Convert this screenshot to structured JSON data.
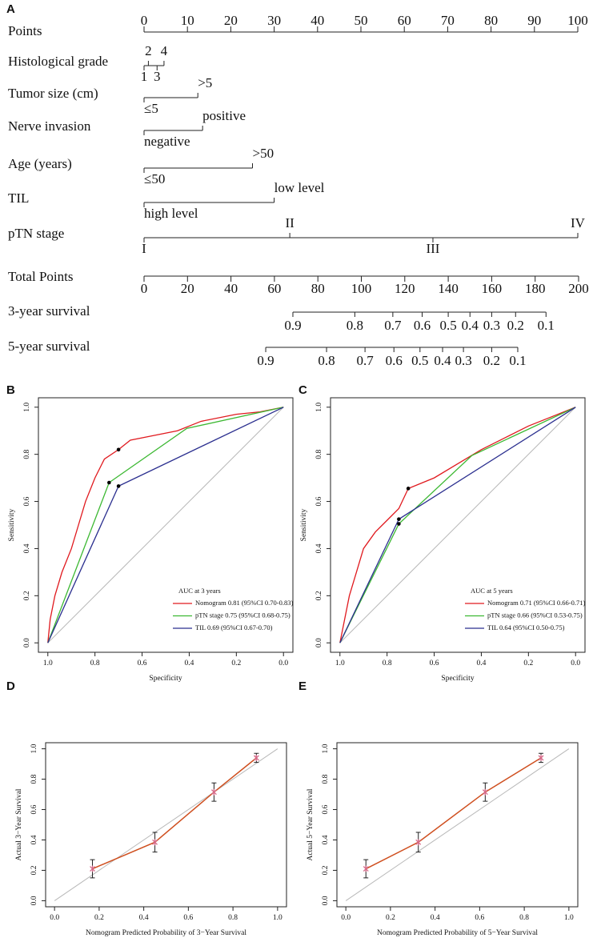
{
  "chart_data": [
    {
      "type": "nomogram",
      "panel": "A",
      "points_label": "Points",
      "xlim": [
        0,
        100
      ],
      "xticks": [
        0,
        10,
        20,
        30,
        40,
        50,
        60,
        70,
        80,
        90,
        100
      ],
      "rows": [
        {
          "label": "Histological grade",
          "levels": [
            "1",
            "2",
            "3",
            "4"
          ],
          "points": [
            0,
            1,
            3,
            4.6
          ]
        },
        {
          "label": "Tumor size (cm)",
          "levels": [
            "≤5",
            ">5"
          ],
          "points": [
            0,
            12.4
          ]
        },
        {
          "label": "Nerve invasion",
          "levels": [
            "negative",
            "positive"
          ],
          "points": [
            0,
            13.5
          ]
        },
        {
          "label": "Age (years)",
          "levels": [
            "≤50",
            ">50"
          ],
          "points": [
            0,
            25
          ]
        },
        {
          "label": "TIL",
          "levels": [
            "high level",
            "low level"
          ],
          "points": [
            0,
            30
          ]
        },
        {
          "label": "pTN stage",
          "levels": [
            "I",
            "II",
            "III",
            "IV"
          ],
          "points": [
            0,
            33.6,
            66.6,
            100
          ]
        }
      ],
      "total_label": "Total Points",
      "total_lim": [
        0,
        200
      ],
      "total_ticks": [
        0,
        20,
        40,
        60,
        80,
        100,
        120,
        140,
        160,
        180,
        200
      ],
      "survival": [
        {
          "label": "3-year survival",
          "probabilities": [
            0.9,
            0.8,
            0.7,
            0.6,
            0.5,
            0.4,
            0.3,
            0.2,
            0.1
          ],
          "points": [
            68.5,
            97,
            114.5,
            128,
            140,
            150,
            160,
            171,
            185
          ]
        },
        {
          "label": "5-year survival",
          "probabilities": [
            0.9,
            0.8,
            0.7,
            0.6,
            0.5,
            0.4,
            0.3,
            0.2,
            0.1
          ],
          "points": [
            56,
            84,
            101.7,
            115,
            127,
            137.4,
            147,
            160,
            172
          ]
        }
      ]
    },
    {
      "type": "line",
      "panel": "B",
      "xlabel": "Specificity",
      "ylabel": "Sensitivity",
      "xlim": [
        1.04,
        -0.04
      ],
      "ylim": [
        -0.04,
        1.04
      ],
      "xticks": [
        {
          "value": 1,
          "label": "1.0"
        },
        0.8,
        0.6,
        0.4,
        0.2,
        {
          "value": 0,
          "label": "0.0"
        }
      ],
      "yticks": [
        {
          "value": 0,
          "label": "0.0"
        },
        0.2,
        0.4,
        0.6,
        0.8,
        {
          "value": 1,
          "label": "1.0"
        }
      ],
      "legend_title": "AUC at 3 years",
      "legend": "lower right",
      "series": [
        {
          "name": "Nomogram 0.81 (95%CI 0.70-0.83)",
          "color": "#e0191e",
          "x": [
            1,
            0.99,
            0.97,
            0.94,
            0.9,
            0.87,
            0.84,
            0.8,
            0.76,
            0.7,
            0.65,
            0.55,
            0.45,
            0.35,
            0.2,
            0.1,
            0
          ],
          "values": [
            0,
            0.1,
            0.2,
            0.3,
            0.4,
            0.5,
            0.6,
            0.7,
            0.78,
            0.82,
            0.86,
            0.88,
            0.9,
            0.94,
            0.97,
            0.98,
            1
          ],
          "cutoff": [
            0.7,
            0.82
          ]
        },
        {
          "name": "pTN stage 0.75 (95%CI 0.68-0.75)",
          "color": "#3cb832",
          "x": [
            1,
            0.74,
            0.41,
            0
          ],
          "values": [
            0,
            0.68,
            0.91,
            1
          ],
          "cutoff": [
            0.74,
            0.68
          ]
        },
        {
          "name": "TIL 0.69 (95%CI 0.67-0.70)",
          "color": "#2b2f8f",
          "x": [
            1,
            0.7,
            0
          ],
          "values": [
            0,
            0.665,
            1
          ],
          "cutoff": [
            0.7,
            0.665
          ]
        }
      ]
    },
    {
      "type": "line",
      "panel": "C",
      "xlabel": "Specificity",
      "ylabel": "Sensitivity",
      "xlim": [
        1.04,
        -0.04
      ],
      "ylim": [
        -0.04,
        1.04
      ],
      "xticks": [
        {
          "value": 1,
          "label": "1.0"
        },
        0.8,
        0.6,
        0.4,
        0.2,
        {
          "value": 0,
          "label": "0.0"
        }
      ],
      "yticks": [
        {
          "value": 0,
          "label": "0.0"
        },
        0.2,
        0.4,
        0.6,
        0.8,
        {
          "value": 1,
          "label": "1.0"
        }
      ],
      "legend_title": "AUC at 5 years",
      "legend": "lower right",
      "series": [
        {
          "name": "Nomogram 0.71 (95%CI 0.66-0.71)",
          "color": "#e0191e",
          "x": [
            1,
            0.98,
            0.96,
            0.93,
            0.9,
            0.85,
            0.8,
            0.75,
            0.71,
            0.6,
            0.5,
            0.4,
            0.3,
            0.2,
            0.1,
            0
          ],
          "values": [
            0,
            0.1,
            0.2,
            0.3,
            0.4,
            0.47,
            0.52,
            0.57,
            0.655,
            0.7,
            0.76,
            0.82,
            0.87,
            0.92,
            0.96,
            1
          ],
          "cutoff": [
            0.71,
            0.655
          ]
        },
        {
          "name": "pTN stage 0.66 (95%CI 0.53-0.75)",
          "color": "#3cb832",
          "x": [
            1,
            0.75,
            0.44,
            0
          ],
          "values": [
            0,
            0.505,
            0.795,
            1
          ],
          "cutoff": [
            0.75,
            0.505
          ]
        },
        {
          "name": "TIL 0.64 (95%CI 0.50-0.75)",
          "color": "#2b2f8f",
          "x": [
            1,
            0.75,
            0
          ],
          "values": [
            0,
            0.525,
            1
          ],
          "cutoff": [
            0.75,
            0.525
          ]
        }
      ]
    },
    {
      "type": "calibration",
      "panel": "D",
      "xlabel": "Nomogram Predicted Probability of 3−Year Survival",
      "ylabel": "Actual 3−Year Survival",
      "xlim": [
        -0.04,
        1.04
      ],
      "ylim": [
        -0.04,
        1.04
      ],
      "xticks": [
        {
          "value": 0,
          "label": "0.0"
        },
        0.2,
        0.4,
        0.6,
        0.8,
        {
          "value": 1,
          "label": "1.0"
        }
      ],
      "yticks": [
        {
          "value": 0,
          "label": "0.0"
        },
        0.2,
        0.4,
        0.6,
        0.8,
        {
          "value": 1,
          "label": "1.0"
        }
      ],
      "color": "#cf4f1f",
      "marker_color": "#d66a8a",
      "x": [
        0.17,
        0.45,
        0.715,
        0.905
      ],
      "values": [
        0.21,
        0.385,
        0.715,
        0.94
      ],
      "errors": [
        0.06,
        0.065,
        0.06,
        0.03
      ]
    },
    {
      "type": "calibration",
      "panel": "E",
      "xlabel": "Nomogram Predicted Probability of 5−Year Survival",
      "ylabel": "Actual 5−Year Survival",
      "xlim": [
        -0.04,
        1.04
      ],
      "ylim": [
        -0.04,
        1.04
      ],
      "xticks": [
        {
          "value": 0,
          "label": "0.0"
        },
        0.2,
        0.4,
        0.6,
        0.8,
        {
          "value": 1,
          "label": "1.0"
        }
      ],
      "yticks": [
        {
          "value": 0,
          "label": "0.0"
        },
        0.2,
        0.4,
        0.6,
        0.8,
        {
          "value": 1,
          "label": "1.0"
        }
      ],
      "color": "#cf4f1f",
      "marker_color": "#d66a8a",
      "x": [
        0.09,
        0.325,
        0.625,
        0.875
      ],
      "values": [
        0.21,
        0.385,
        0.715,
        0.94
      ],
      "errors": [
        0.06,
        0.065,
        0.06,
        0.03
      ]
    }
  ]
}
